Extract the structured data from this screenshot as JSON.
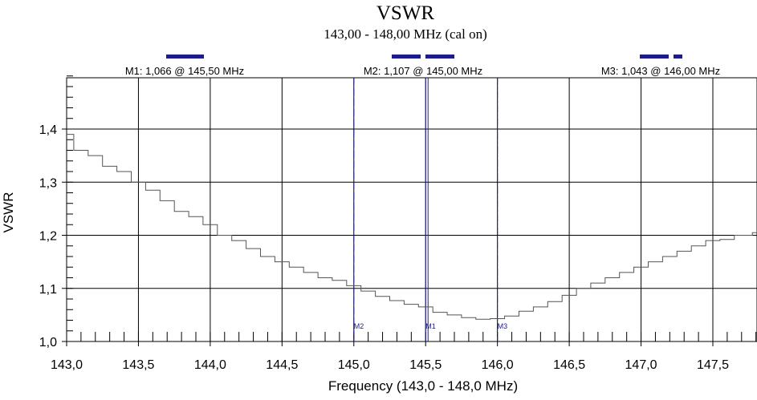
{
  "chart_data": {
    "type": "line",
    "title": "VSWR",
    "subtitle": "143,00 - 148,00 MHz (cal on)",
    "xlabel": "Frequency (143,0 - 148,0 MHz)",
    "ylabel": "VSWR",
    "xlim": [
      143.0,
      147.85
    ],
    "ylim": [
      1.0,
      1.5
    ],
    "x_ticks": [
      143.0,
      143.5,
      144.0,
      144.5,
      145.0,
      145.5,
      146.0,
      146.5,
      147.0,
      147.5
    ],
    "x_tick_labels": [
      "143,0",
      "143,5",
      "144,0",
      "144,5",
      "145,0",
      "145,5",
      "146,0",
      "146,5",
      "147,0",
      "147,5"
    ],
    "y_ticks": [
      1.0,
      1.1,
      1.2,
      1.3,
      1.4
    ],
    "y_tick_labels": [
      "1,0",
      "1,1",
      "1,2",
      "1,3",
      "1,4"
    ],
    "grid": true,
    "series": [
      {
        "x": [
          143.0,
          143.1,
          143.2,
          143.3,
          143.4,
          143.5,
          143.6,
          143.7,
          143.8,
          143.9,
          144.0,
          144.1,
          144.2,
          144.3,
          144.4,
          144.5,
          144.6,
          144.7,
          144.8,
          144.9,
          145.0,
          145.1,
          145.2,
          145.3,
          145.4,
          145.5,
          145.6,
          145.7,
          145.8,
          145.9,
          146.0,
          146.1,
          146.2,
          146.3,
          146.4,
          146.5,
          146.6,
          146.7,
          146.8,
          146.9,
          147.0,
          147.1,
          147.2,
          147.3,
          147.4,
          147.5,
          147.6,
          147.7,
          147.85
        ],
        "values": [
          1.39,
          1.36,
          1.35,
          1.33,
          1.32,
          1.3,
          1.285,
          1.265,
          1.245,
          1.235,
          1.22,
          1.2,
          1.19,
          1.175,
          1.16,
          1.15,
          1.14,
          1.13,
          1.12,
          1.115,
          1.105,
          1.095,
          1.085,
          1.077,
          1.07,
          1.065,
          1.055,
          1.05,
          1.045,
          1.042,
          1.043,
          1.048,
          1.057,
          1.065,
          1.075,
          1.087,
          1.1,
          1.11,
          1.12,
          1.13,
          1.14,
          1.15,
          1.16,
          1.17,
          1.18,
          1.19,
          1.192,
          1.2,
          1.205
        ]
      }
    ],
    "markers": [
      {
        "id": "M1",
        "freq": 145.5,
        "vswr": 1.066,
        "text": "M1: 1,066  @ 145,50 MHz",
        "style": "solid"
      },
      {
        "id": "M2",
        "freq": 145.0,
        "vswr": 1.107,
        "text": "M2: 1,107  @ 145,00 MHz",
        "style": "dashed"
      },
      {
        "id": "M3",
        "freq": 146.0,
        "vswr": 1.043,
        "text": "M3: 1,043  @ 146,00 MHz",
        "style": "dashdot"
      }
    ]
  },
  "colors": {
    "curve": "#555555",
    "grid": "#000000",
    "marker": "#1c1c8c",
    "bar": "#1c1c8c",
    "text": "#000000"
  }
}
